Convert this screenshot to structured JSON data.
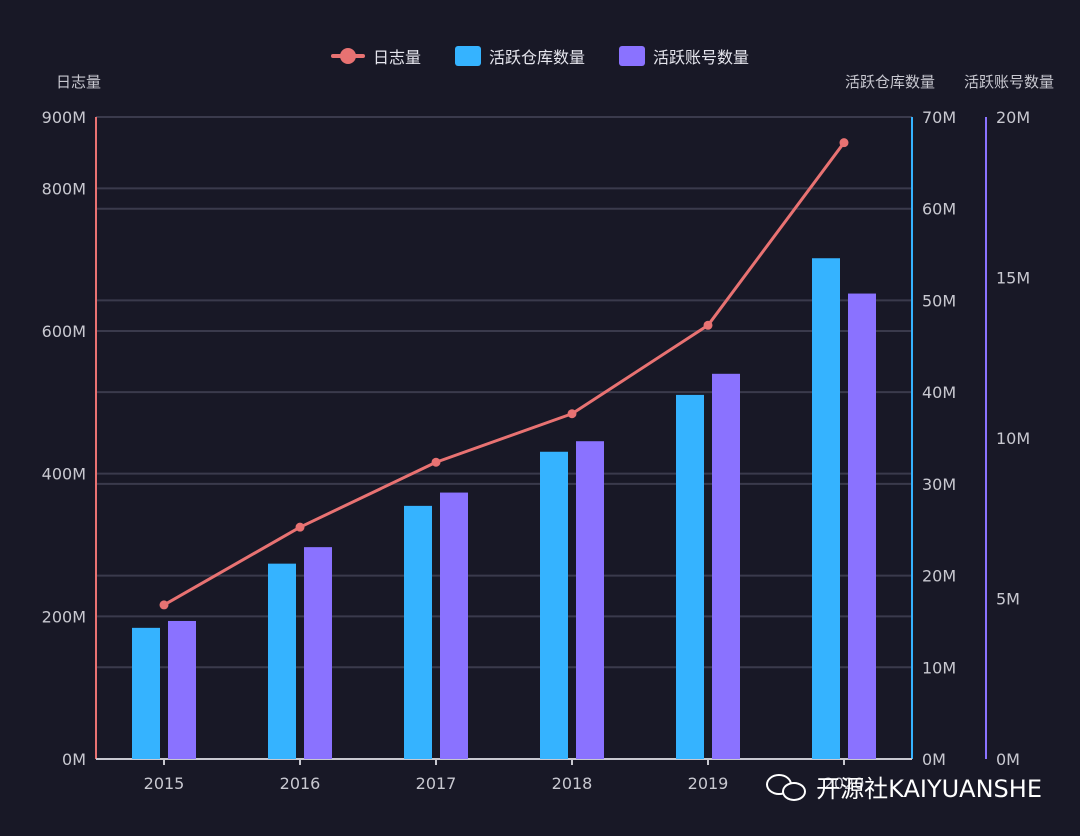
{
  "legend": {
    "log": "日志量",
    "repos": "活跃仓库数量",
    "accounts": "活跃账号数量"
  },
  "axis_names": {
    "left": "日志量",
    "right1": "活跃仓库数量",
    "right2": "活跃账号数量"
  },
  "watermark": "开源社KAIYUANSHE",
  "colors": {
    "log": "#e87272",
    "repos": "#35b3ff",
    "accounts": "#8a72ff",
    "grid": "#3a3a4c",
    "background": "#181826"
  },
  "chart_data": {
    "type": "bar",
    "categories": [
      "2015",
      "2016",
      "2017",
      "2018",
      "2019",
      "2020"
    ],
    "series": [
      {
        "name": "日志量",
        "type": "line",
        "axis": "left",
        "values": [
          216,
          325,
          416,
          484,
          608,
          864
        ]
      },
      {
        "name": "活跃仓库数量",
        "type": "bar",
        "axis": "right1",
        "values": [
          14.3,
          21.3,
          27.6,
          33.5,
          39.7,
          54.6
        ]
      },
      {
        "name": "活跃账号数量",
        "type": "bar",
        "axis": "right2",
        "values": [
          4.3,
          6.6,
          8.3,
          9.9,
          12.0,
          14.5
        ]
      }
    ],
    "axes": {
      "left": {
        "ticks": [
          "0M",
          "200M",
          "400M",
          "600M",
          "800M",
          "900M"
        ],
        "tick_values": [
          0,
          200,
          400,
          600,
          800,
          900
        ],
        "range": [
          0,
          900
        ]
      },
      "right1": {
        "ticks": [
          "0M",
          "10M",
          "20M",
          "30M",
          "40M",
          "50M",
          "60M",
          "70M"
        ],
        "tick_values": [
          0,
          10,
          20,
          30,
          40,
          50,
          60,
          70
        ],
        "range": [
          0,
          70
        ]
      },
      "right2": {
        "ticks": [
          "0M",
          "5M",
          "10M",
          "15M",
          "20M"
        ],
        "tick_values": [
          0,
          5,
          10,
          15,
          20
        ],
        "range": [
          0,
          20
        ]
      }
    },
    "grid": true,
    "legend_position": "top-center"
  }
}
